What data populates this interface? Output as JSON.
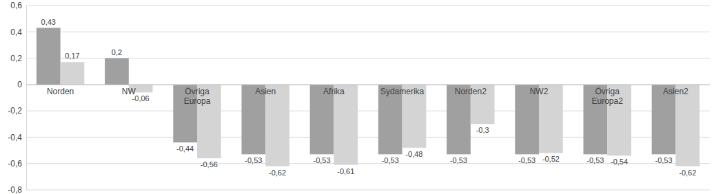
{
  "chart_data": {
    "type": "bar",
    "categories": [
      "Norden",
      "NW",
      "Övriga Europa",
      "Asien",
      "Afrika",
      "Sydamerika",
      "Norden2",
      "NW2",
      "Övriga Europa2",
      "Asien2"
    ],
    "series": [
      {
        "color": "#a0a0a0",
        "values": [
          0.43,
          0.2,
          -0.44,
          -0.53,
          -0.53,
          -0.53,
          -0.53,
          -0.53,
          -0.53,
          -0.53
        ],
        "value_labels": [
          "0,43",
          "0,2",
          "-0,44",
          "-0,53",
          "-0,53",
          "-0,53",
          "-0,53",
          "-0,53",
          "-0,53",
          "-0,53"
        ]
      },
      {
        "color": "#d4d4d4",
        "values": [
          0.17,
          -0.06,
          -0.56,
          -0.62,
          -0.61,
          -0.48,
          -0.3,
          -0.52,
          -0.54,
          -0.62
        ],
        "value_labels": [
          "0,17",
          "-0,06",
          "-0,56",
          "-0,62",
          "-0,61",
          "-0,48",
          "-0,3",
          "-0,52",
          "-0,54",
          "-0,62"
        ]
      }
    ],
    "ylim": [
      -0.8,
      0.6
    ],
    "yticks": [
      {
        "value": -0.8,
        "label": "-0,8"
      },
      {
        "value": -0.6,
        "label": "-0,6"
      },
      {
        "value": -0.4,
        "label": "-0,4"
      },
      {
        "value": -0.2,
        "label": "-0,2"
      },
      0,
      {
        "value": 0.2,
        "label": "0,2"
      },
      {
        "value": 0.4,
        "label": "0,4"
      },
      {
        "value": 0.6,
        "label": "0,6"
      }
    ],
    "grid": true,
    "data_labels": true
  }
}
